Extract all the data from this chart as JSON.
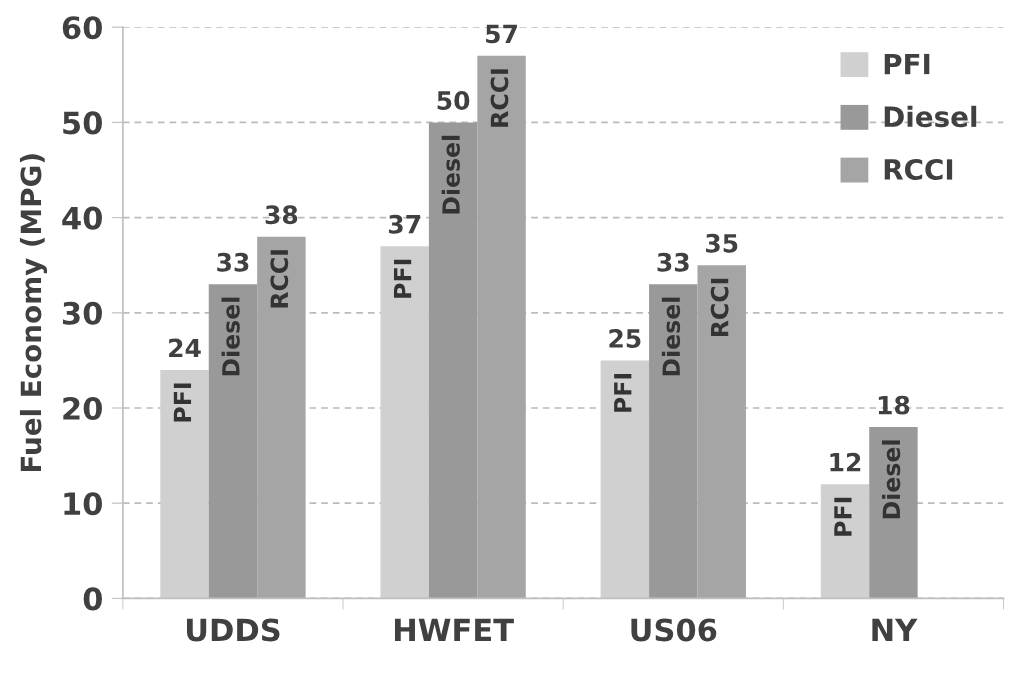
{
  "chart_data": {
    "type": "bar",
    "categories": [
      "UDDS",
      "HWFET",
      "US06",
      "NY"
    ],
    "series": [
      {
        "name": "PFI",
        "color": "#d0d0d0",
        "values": [
          24,
          37,
          25,
          12
        ]
      },
      {
        "name": "Diesel",
        "color": "#999999",
        "values": [
          33,
          50,
          33,
          18
        ]
      },
      {
        "name": "RCCI",
        "color": "#a5a5a5",
        "values": [
          38,
          57,
          35,
          null
        ]
      }
    ],
    "ylabel": "Fuel Economy (MPG)",
    "ylim": [
      0,
      60
    ],
    "yticks": [
      0,
      10,
      20,
      30,
      40,
      50,
      60
    ],
    "grid": "y",
    "legend": "top right",
    "data_labels": true
  }
}
